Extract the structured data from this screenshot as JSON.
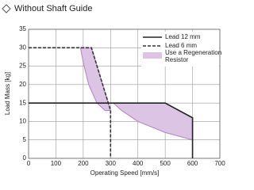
{
  "chart_data": {
    "type": "line",
    "title": "Without Shaft Guide",
    "x_label": "Operating Speed [mm/s]",
    "y_label": "Load Mass [kg]",
    "xlim": [
      0,
      700
    ],
    "xticks": [
      0,
      100,
      200,
      300,
      400,
      500,
      600,
      700
    ],
    "ylim": [
      0,
      35
    ],
    "yticks": [
      0,
      5,
      10,
      15,
      20,
      25,
      30,
      35
    ],
    "grid": true,
    "legend": "top-right",
    "series": [
      {
        "name": "Lead 12 mm",
        "color": "#222222",
        "dashed": false,
        "x": [
          0,
          500,
          600,
          600
        ],
        "values": [
          15,
          15,
          11,
          0
        ]
      },
      {
        "name": "Lead 6 mm",
        "color": "#333333",
        "dashed": true,
        "x": [
          0,
          230,
          300,
          300
        ],
        "values": [
          30,
          30,
          13,
          0
        ]
      }
    ],
    "regions": {
      "name": "Use a Regeneration Resistor",
      "color": "#dcc4e4",
      "edge": "#b283c2",
      "areas": [
        {
          "x": [
            190,
            230,
            300,
            280,
            250,
            220,
            200
          ],
          "values": [
            30,
            30,
            13,
            13,
            15,
            20,
            26
          ]
        },
        {
          "x": [
            310,
            500,
            600,
            600,
            500,
            400,
            340
          ],
          "values": [
            15,
            15,
            11,
            5,
            7,
            10,
            13
          ]
        }
      ]
    }
  }
}
